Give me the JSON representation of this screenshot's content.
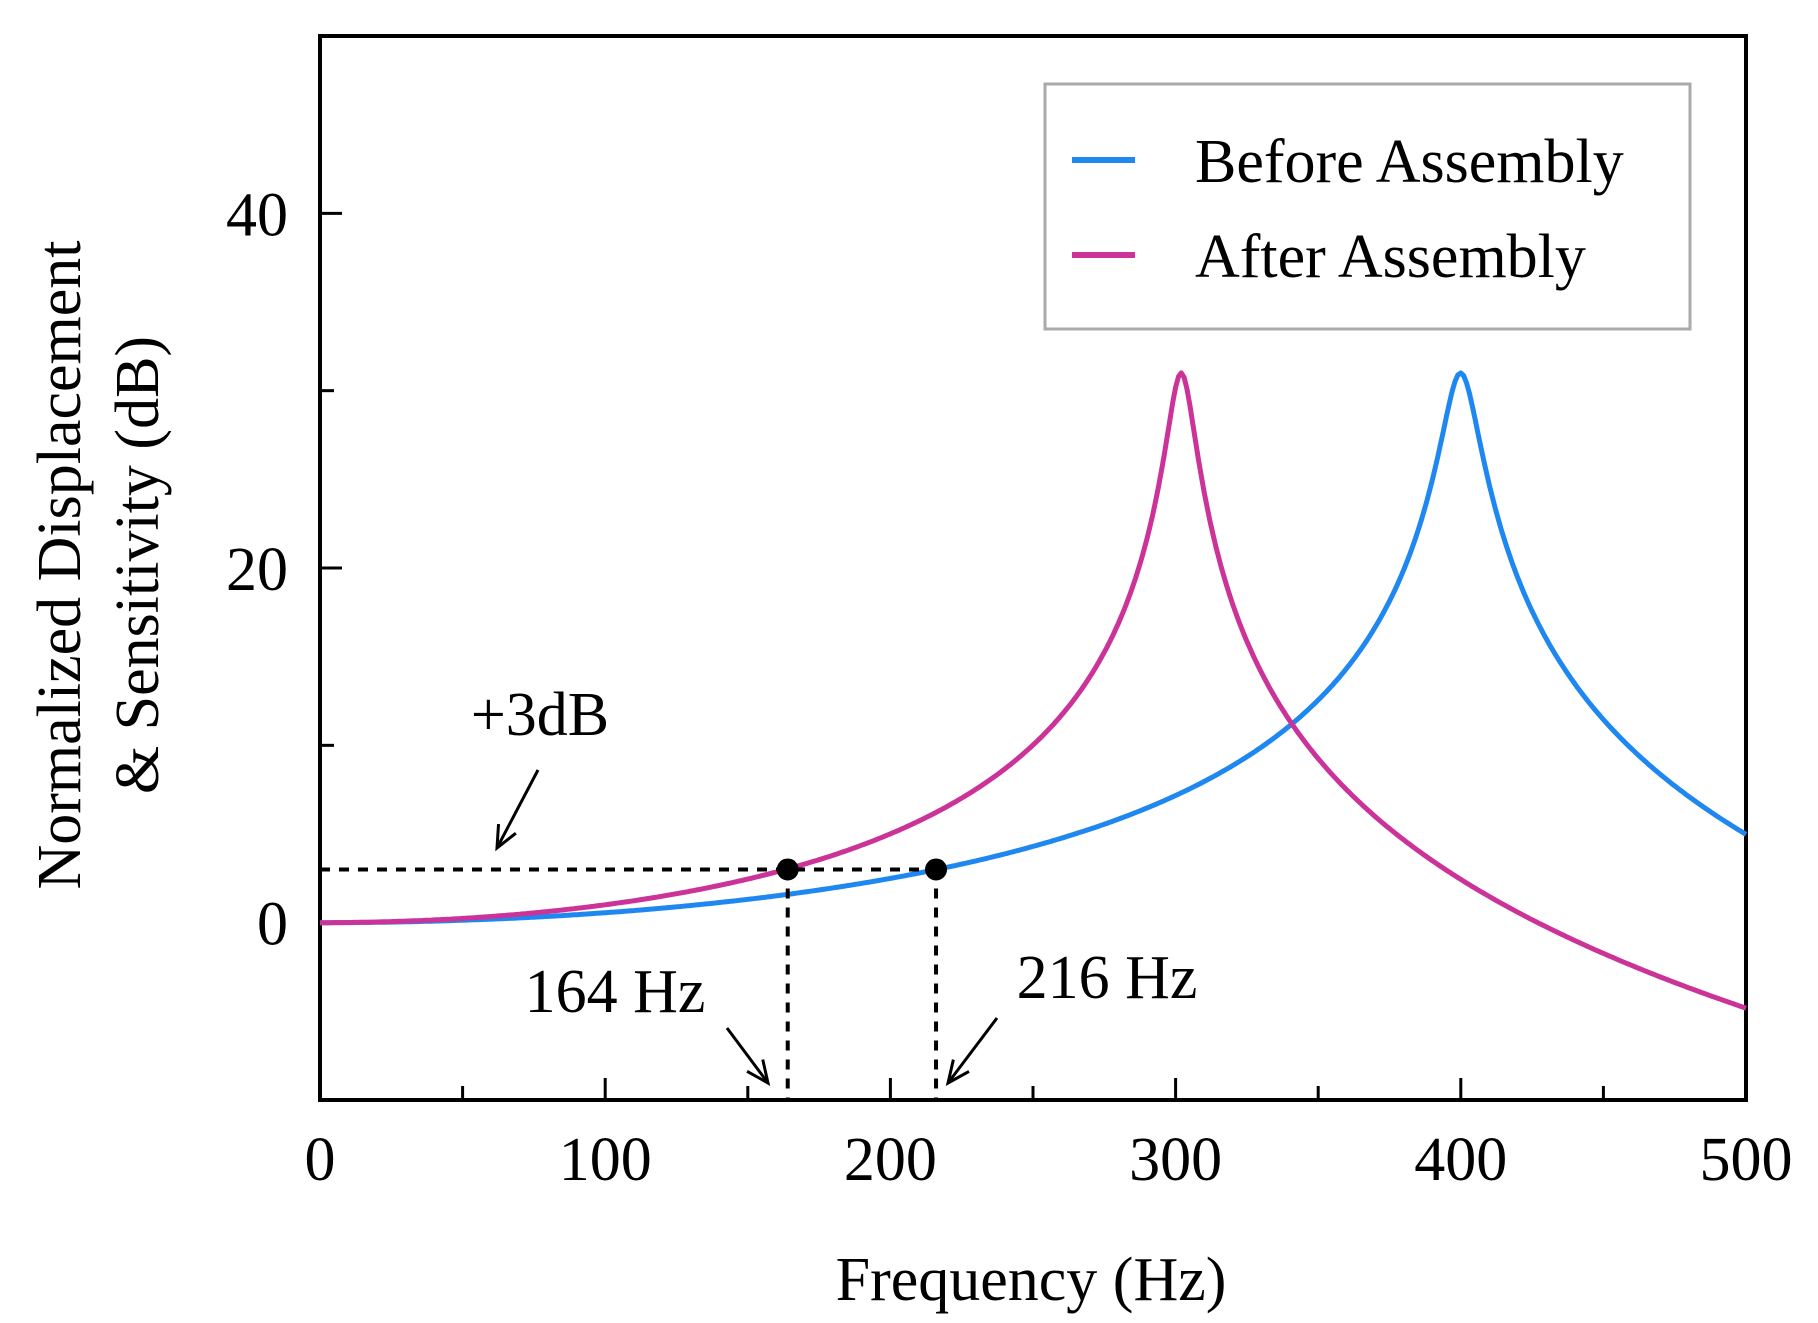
{
  "chart_data": {
    "type": "line",
    "title": "",
    "xlabel": "Frequency (Hz)",
    "ylabel_line1": "Normalized Displacement",
    "ylabel_line2": "& Sensitivity (dB)",
    "xlim": [
      0,
      500
    ],
    "ylim": [
      -10,
      50
    ],
    "xticks": [
      0,
      100,
      200,
      300,
      400,
      500
    ],
    "xticks_minor": [
      50,
      150,
      250,
      350,
      450
    ],
    "yticks": [
      0,
      20,
      40
    ],
    "yticks_minor": [
      10,
      30
    ],
    "legend_position": "top-right",
    "series": [
      {
        "name": "Before Assembly",
        "color": "#1e88f0",
        "resonance_hz": 400,
        "peak_db": 31
      },
      {
        "name": "After Assembly",
        "color": "#cc3399",
        "resonance_hz": 302,
        "peak_db": 31
      }
    ],
    "reference_level_db": 3,
    "reference_label": "+3dB",
    "markers": [
      {
        "x": 164,
        "y": 3,
        "label": "164 Hz"
      },
      {
        "x": 216,
        "y": 3,
        "label": "216 Hz"
      }
    ]
  }
}
